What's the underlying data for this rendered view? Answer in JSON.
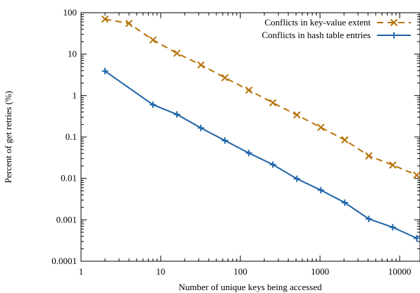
{
  "chart_data": {
    "type": "line",
    "title": "",
    "xlabel": "Number of unique keys being accessed",
    "ylabel": "Percent of get retries (%)",
    "x_scale": "log",
    "y_scale": "log",
    "xlim": [
      1,
      18000
    ],
    "ylim": [
      0.0001,
      100
    ],
    "x_ticks": [
      1,
      10,
      100,
      1000,
      10000
    ],
    "x_tick_labels": [
      "1",
      "10",
      "100",
      "1000",
      "10000"
    ],
    "y_ticks": [
      0.0001,
      0.001,
      0.01,
      0.1,
      1,
      10,
      100
    ],
    "y_tick_labels": [
      "0.0001",
      "0.001",
      "0.01",
      "0.1",
      "1",
      "10",
      "100"
    ],
    "grid": false,
    "legend_position": "top-right",
    "series": [
      {
        "name": "Conflicts in key-value extent",
        "color": "#b8730a",
        "line_style": "dashed",
        "marker": "x",
        "x": [
          2,
          4,
          8,
          16,
          32,
          64,
          128,
          256,
          512,
          1024,
          2048,
          4096,
          8192,
          16384
        ],
        "y": [
          70,
          55,
          22,
          10.5,
          5.5,
          2.7,
          1.35,
          0.67,
          0.34,
          0.17,
          0.085,
          0.035,
          0.021,
          0.012
        ]
      },
      {
        "name": "Conflicts in hash table entries",
        "color": "#1f65a8",
        "line_style": "solid",
        "marker": "+",
        "x": [
          2,
          8,
          16,
          32,
          64,
          128,
          256,
          512,
          1024,
          2048,
          4096,
          8192,
          16384
        ],
        "y": [
          3.9,
          0.6,
          0.35,
          0.165,
          0.082,
          0.041,
          0.0215,
          0.0098,
          0.0052,
          0.0026,
          0.00105,
          0.00066,
          0.00036
        ]
      }
    ]
  }
}
